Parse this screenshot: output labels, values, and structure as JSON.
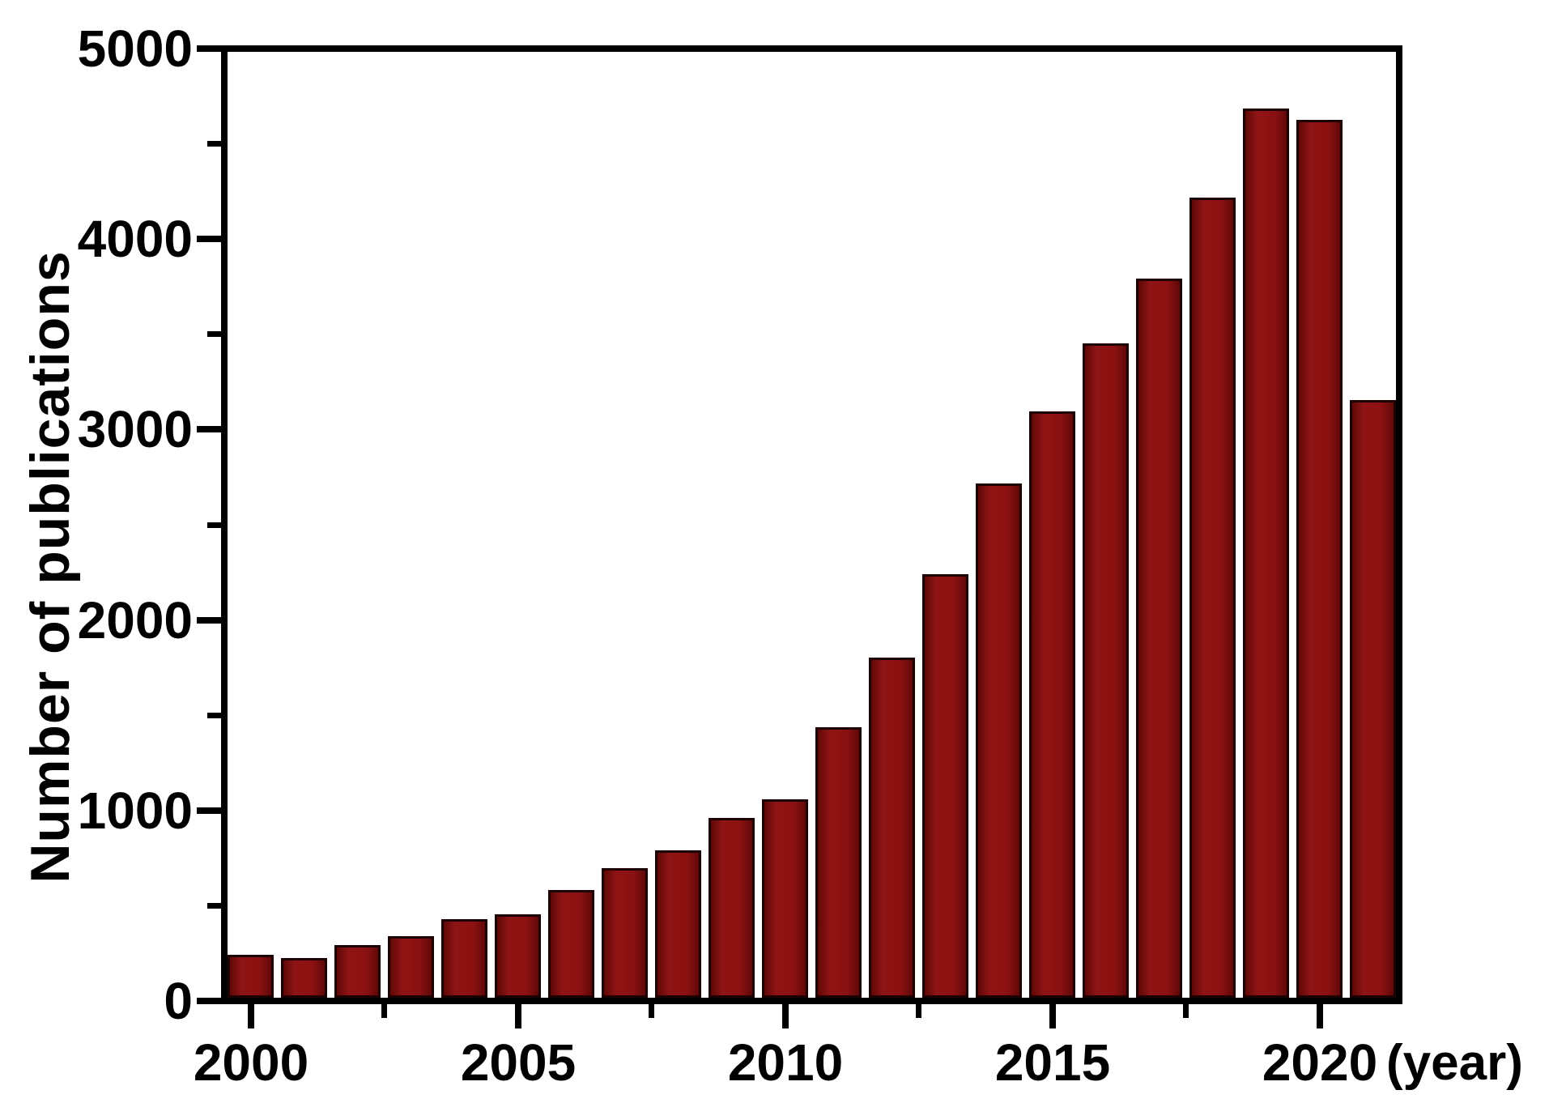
{
  "chart_data": {
    "type": "bar",
    "title": "",
    "ylabel": "Number of publications",
    "xlabel_unit": "(year)",
    "categories": [
      2000,
      2001,
      2002,
      2003,
      2004,
      2005,
      2006,
      2007,
      2008,
      2009,
      2010,
      2011,
      2012,
      2013,
      2014,
      2015,
      2016,
      2017,
      2018,
      2019,
      2020,
      2021
    ],
    "values": [
      225,
      210,
      280,
      325,
      415,
      440,
      570,
      685,
      780,
      950,
      1050,
      1430,
      1800,
      2240,
      2720,
      3100,
      3460,
      3800,
      4230,
      4700,
      4640,
      3160
    ],
    "ylim": [
      0,
      5000
    ],
    "y_major_ticks": [
      0,
      1000,
      2000,
      3000,
      4000,
      5000
    ],
    "y_minor_ticks": [
      500,
      1500,
      2500,
      3500,
      4500
    ],
    "x_major_ticks": [
      2000,
      2005,
      2010,
      2015,
      2020
    ],
    "x_minor_ticks": [
      2002.5,
      2007.5,
      2012.5,
      2017.5
    ],
    "x_tick_labels": [
      "2000",
      "2005",
      "2010",
      "2015",
      "2020"
    ],
    "legend": null,
    "grid": false,
    "colors": {
      "bar_fill": "#8b1111",
      "bar_border": "#1c0202",
      "axis": "#000000",
      "background": "#ffffff",
      "text": "#000000"
    }
  }
}
